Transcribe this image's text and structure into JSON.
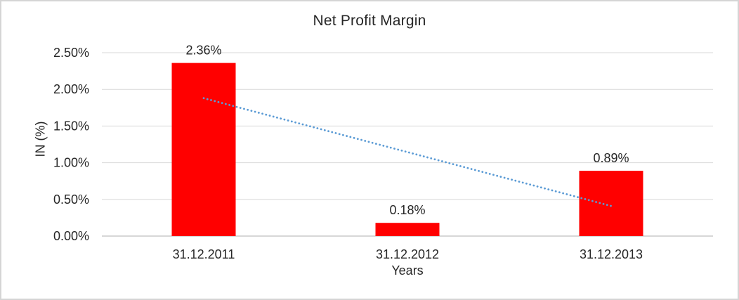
{
  "window": {
    "background": "#FFFFFF",
    "border_color": "#D5D5D5"
  },
  "chart_data": {
    "type": "bar",
    "title": "Net Profit Margin",
    "xlabel": "Years",
    "ylabel": "IN (%)",
    "categories": [
      "31.12.2011",
      "31.12.2012",
      "31.12.2013"
    ],
    "values": [
      2.36,
      0.18,
      0.89
    ],
    "data_labels": [
      "2.36%",
      "0.18%",
      "0.89%"
    ],
    "y_ticks": [
      {
        "value": 0.0,
        "label": "0.00%"
      },
      {
        "value": 0.5,
        "label": "0.50%"
      },
      {
        "value": 1.0,
        "label": "1.00%"
      },
      {
        "value": 1.5,
        "label": "1.50%"
      },
      {
        "value": 2.0,
        "label": "2.00%"
      },
      {
        "value": 2.5,
        "label": "2.50%"
      }
    ],
    "ylim": [
      0,
      2.5
    ],
    "grid": true,
    "legend": "none",
    "bar_color": "#FF0000",
    "gridline_color": "#D9D9D9",
    "axis_line_color": "#BFBFBF",
    "text_color": "#262626",
    "trendline": {
      "type": "linear",
      "style": "dotted",
      "color": "#5B9BD5",
      "start_value": 1.88,
      "end_value": 0.41
    }
  }
}
